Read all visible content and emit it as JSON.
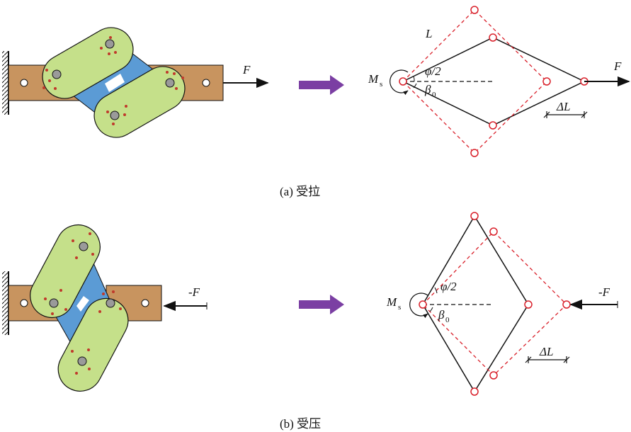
{
  "panel_a": {
    "caption": "(a) 受拉",
    "force_left": "F",
    "force_right": "F",
    "moment": "M",
    "moment_sub": "s",
    "angle_phi": "φ/2",
    "angle_beta": "β",
    "beta_sub": "0",
    "length": "L",
    "delta": "ΔL"
  },
  "panel_b": {
    "caption": "(b) 受压",
    "force_left": "-F",
    "force_right": "-F",
    "moment": "M",
    "moment_sub": "s",
    "angle_phi": "φ/2",
    "angle_beta": "β",
    "beta_sub": "0",
    "delta": "ΔL"
  },
  "colors": {
    "beam": "#c8945f",
    "link": "#5b9bd5",
    "cell": "#c5e08a",
    "arrow": "#7b3fa3",
    "dashed": "#d9202a",
    "line": "#111111"
  }
}
